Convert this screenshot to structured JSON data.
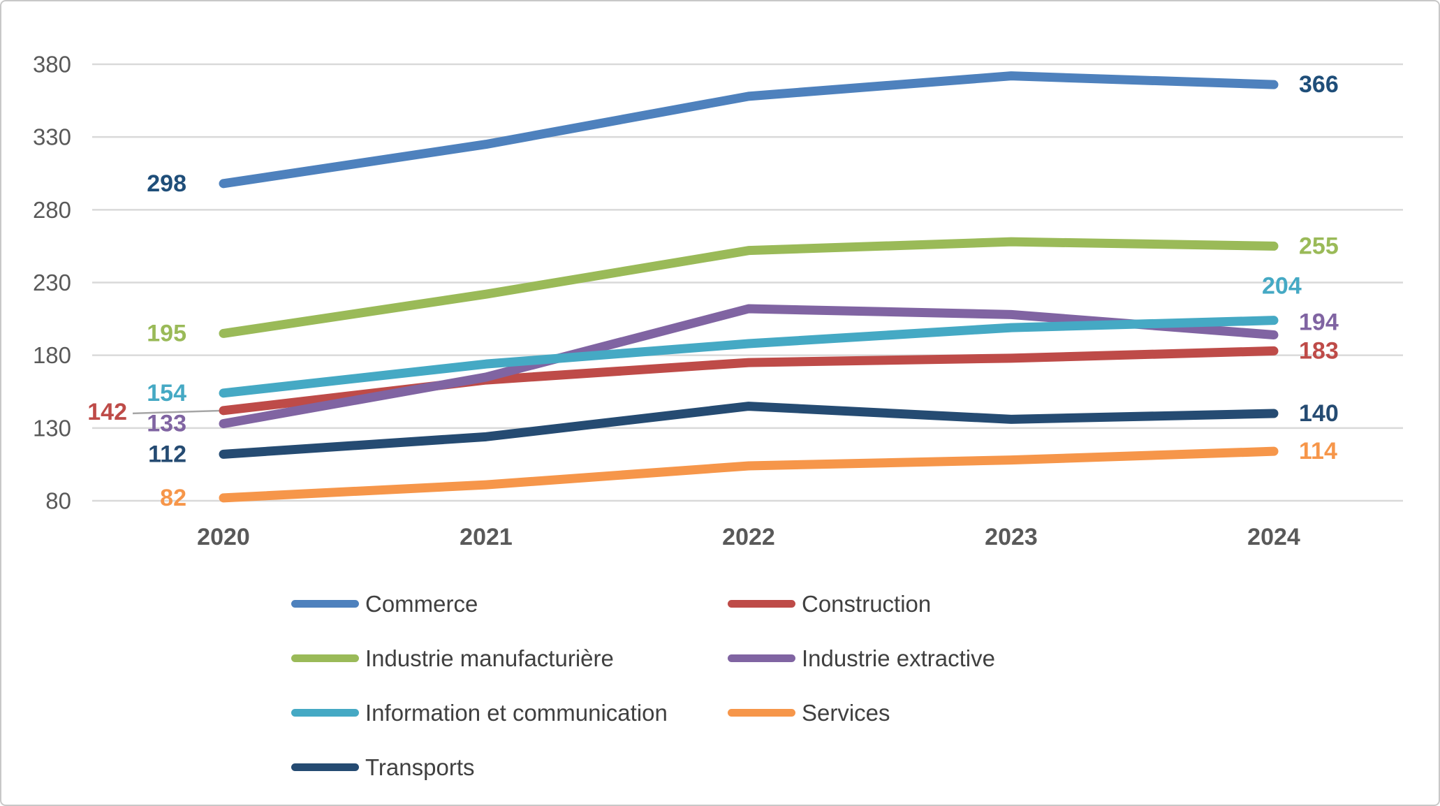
{
  "chart_data": {
    "type": "line",
    "title": "",
    "xlabel": "",
    "ylabel": "",
    "x_categories": [
      "2020",
      "2021",
      "2022",
      "2023",
      "2024"
    ],
    "y_ticks": [
      380,
      330,
      280,
      230,
      180,
      130,
      80
    ],
    "ylim": [
      80,
      380
    ],
    "grid": true,
    "legend_position": "bottom-two-columns",
    "series": [
      {
        "name": "Commerce",
        "color": "#4E81BD",
        "label_color": "#1F4E79",
        "values": [
          298,
          325,
          358,
          372,
          366
        ],
        "first_label": "298",
        "last_label": "366"
      },
      {
        "name": "Construction",
        "color": "#BE4B48",
        "label_color": "#BE4B48",
        "values": [
          142,
          163,
          175,
          178,
          183
        ],
        "first_label": "142",
        "last_label": "183"
      },
      {
        "name": "Industrie manufacturière",
        "color": "#9ABA58",
        "label_color": "#9ABA58",
        "values": [
          195,
          222,
          252,
          258,
          255
        ],
        "first_label": "195",
        "last_label": "255"
      },
      {
        "name": "Industrie extractive",
        "color": "#8064A2",
        "label_color": "#8064A2",
        "values": [
          133,
          165,
          212,
          208,
          194
        ],
        "first_label": "133",
        "last_label": "194"
      },
      {
        "name": "Information et communication",
        "color": "#45A9C4",
        "label_color": "#45A9C4",
        "values": [
          154,
          174,
          188,
          199,
          204
        ],
        "first_label": "154",
        "last_label": "204"
      },
      {
        "name": "Services",
        "color": "#F6964A",
        "label_color": "#F6964A",
        "values": [
          82,
          91,
          104,
          108,
          114
        ],
        "first_label": "82",
        "last_label": "114"
      },
      {
        "name": "Transports",
        "color": "#254B72",
        "label_color": "#254B72",
        "values": [
          112,
          124,
          145,
          136,
          140
        ],
        "first_label": "112",
        "last_label": "140"
      }
    ]
  },
  "colors": {
    "gridline": "#D9D9D9",
    "axis_text": "#595959",
    "legend_text": "#404040",
    "leader_line": "#A6A6A6",
    "frame_border": "#C8C8C8",
    "background": "#FFFFFF"
  }
}
